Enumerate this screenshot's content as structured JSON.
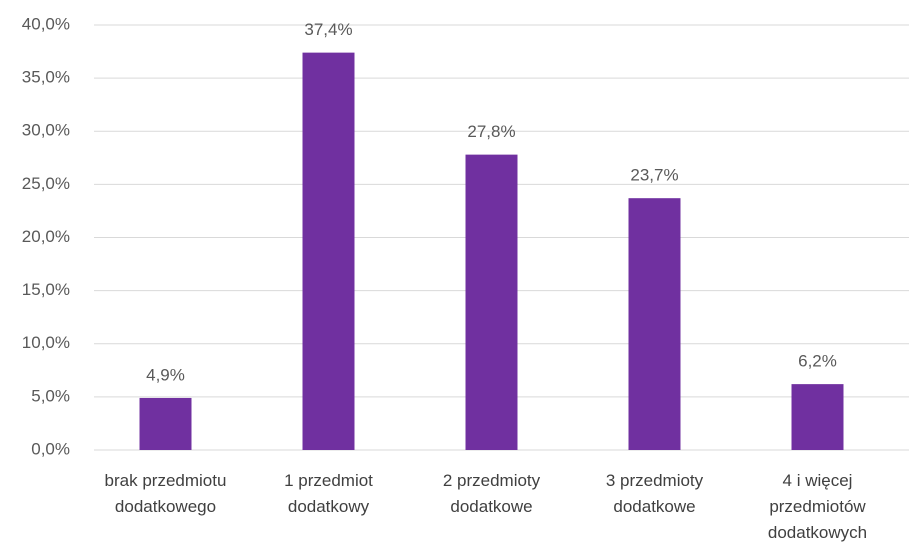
{
  "chart_data": {
    "type": "bar",
    "categories": [
      "brak przedmiotu dodatkowego",
      "1 przedmiot dodatkowy",
      "2 przedmioty dodatkowe",
      "3 przedmioty dodatkowe",
      "4 i więcej przedmiotów dodatkowych"
    ],
    "values": [
      4.9,
      37.4,
      27.8,
      23.7,
      6.2
    ],
    "value_labels": [
      "4,9%",
      "37,4%",
      "27,8%",
      "23,7%",
      "6,2%"
    ],
    "color": "#7030a0",
    "ylim": [
      0,
      40
    ],
    "yticks": [
      {
        "value": 0,
        "label": "0,0%"
      },
      {
        "value": 5,
        "label": "5,0%"
      },
      {
        "value": 10,
        "label": "10,0%"
      },
      {
        "value": 15,
        "label": "15,0%"
      },
      {
        "value": 20,
        "label": "20,0%"
      },
      {
        "value": 25,
        "label": "25,0%"
      },
      {
        "value": 30,
        "label": "30,0%"
      },
      {
        "value": 35,
        "label": "35,0%"
      },
      {
        "value": 40,
        "label": "40,0%"
      }
    ],
    "grid": true
  }
}
